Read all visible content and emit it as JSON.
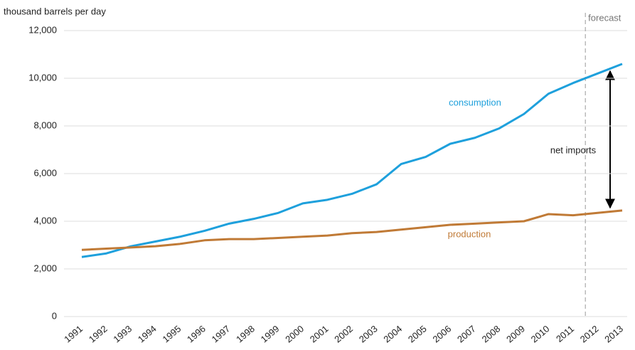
{
  "chart_data": {
    "type": "line",
    "y_axis_label": "thousand barrels per day",
    "x": [
      1991,
      1992,
      1993,
      1994,
      1995,
      1996,
      1997,
      1998,
      1999,
      2000,
      2001,
      2002,
      2003,
      2004,
      2005,
      2006,
      2007,
      2008,
      2009,
      2010,
      2011,
      2012,
      2013
    ],
    "series": [
      {
        "name": "consumption",
        "color": "#1ea0dc",
        "values": [
          2500,
          2650,
          2950,
          3150,
          3350,
          3600,
          3900,
          4100,
          4350,
          4750,
          4900,
          5150,
          5550,
          6400,
          6700,
          7250,
          7500,
          7900,
          8500,
          9350,
          9800,
          10200,
          10600
        ]
      },
      {
        "name": "production",
        "color": "#c07a36",
        "values": [
          2800,
          2850,
          2900,
          2950,
          3050,
          3200,
          3250,
          3250,
          3300,
          3350,
          3400,
          3500,
          3550,
          3650,
          3750,
          3850,
          3900,
          3950,
          4000,
          4300,
          4250,
          4350,
          4450
        ]
      }
    ],
    "xlim": [
      1991,
      2013
    ],
    "ylim": [
      0,
      12000
    ],
    "yticks": [
      0,
      {
        "value": 2000,
        "label": "2,000"
      },
      {
        "value": 4000,
        "label": "4,000"
      },
      {
        "value": 6000,
        "label": "6,000"
      },
      {
        "value": 8000,
        "label": "8,000"
      },
      {
        "value": 10000,
        "label": "10,000"
      },
      {
        "value": 12000,
        "label": "12,000"
      }
    ],
    "grid": true,
    "forecast_label": "forecast",
    "forecast_x": 2011.5,
    "net_imports_label": "net imports"
  }
}
